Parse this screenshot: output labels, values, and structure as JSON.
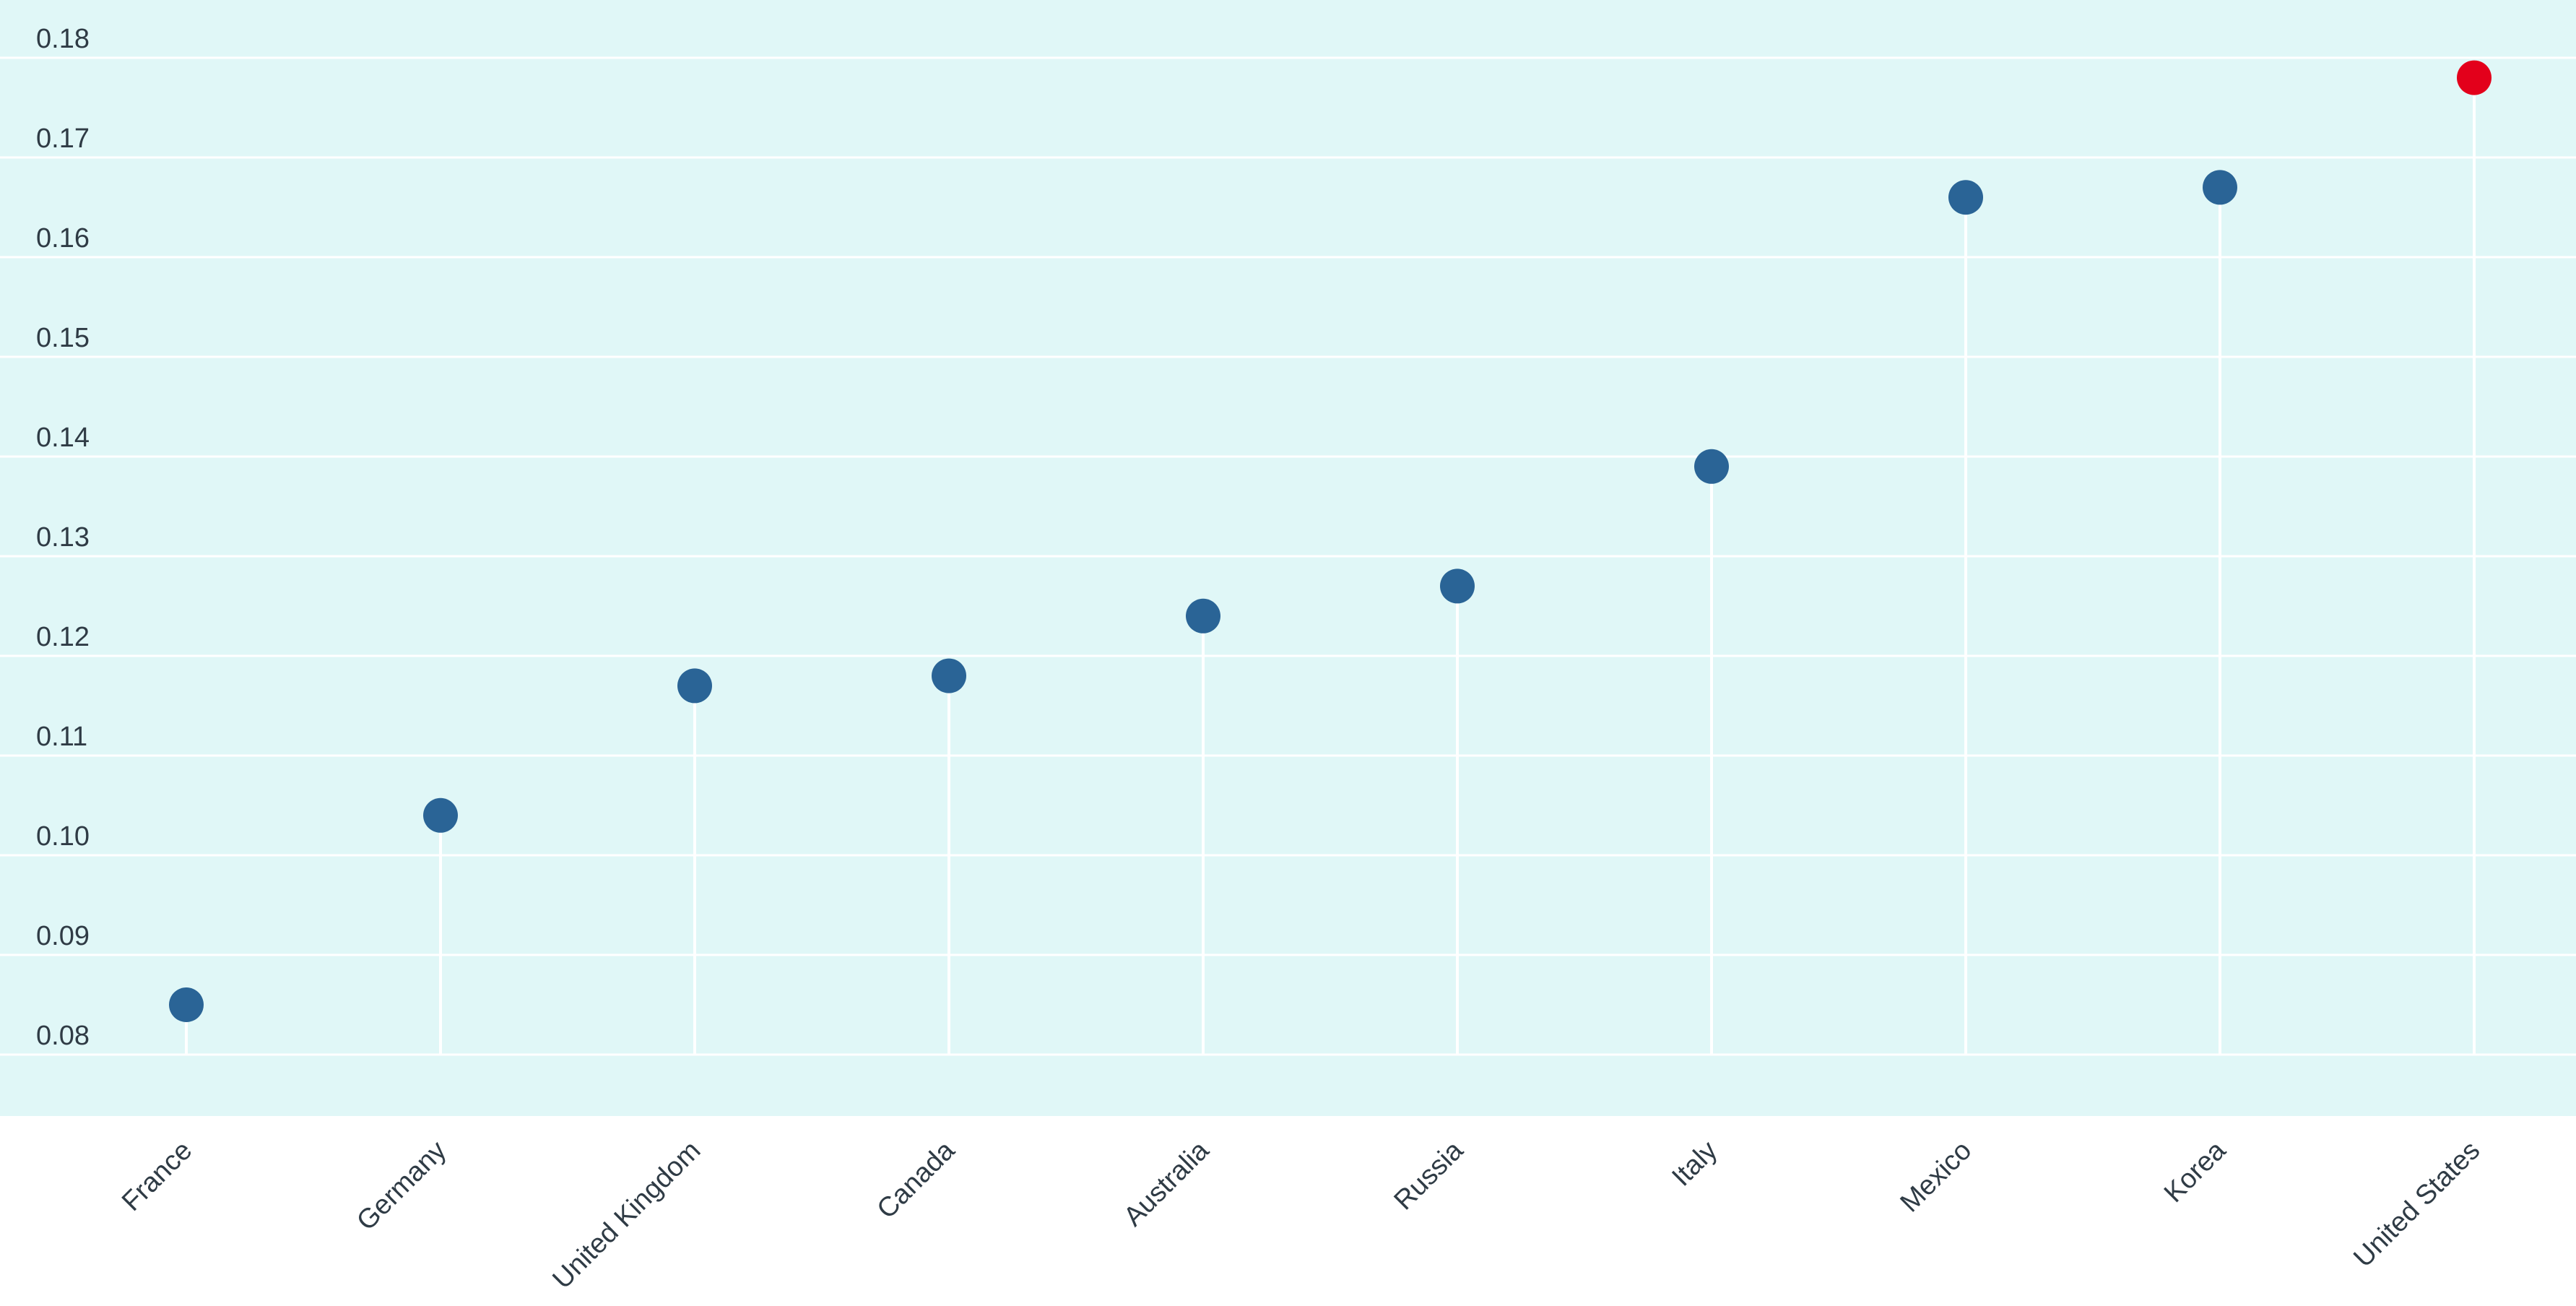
{
  "chart_data": {
    "type": "lollipop",
    "title": "",
    "xlabel": "",
    "ylabel": "",
    "categories": [
      "France",
      "Germany",
      "United Kingdom",
      "Canada",
      "Australia",
      "Russia",
      "Italy",
      "Mexico",
      "Korea",
      "United States"
    ],
    "values": [
      0.085,
      0.104,
      0.117,
      0.118,
      0.124,
      0.127,
      0.139,
      0.166,
      0.167,
      0.178
    ],
    "highlight": "United States",
    "ylim": [
      0.08,
      0.18
    ],
    "yticks": [
      "0.08",
      "0.09",
      "0.10",
      "0.11",
      "0.12",
      "0.13",
      "0.14",
      "0.15",
      "0.16",
      "0.17",
      "0.18"
    ],
    "grid": true,
    "colors": {
      "plot_background": "#e0f7f7",
      "gridline": "#ffffff",
      "stem": "#ffffff",
      "point": "#2a6496",
      "highlight_point": "#e3001b",
      "highlight_label": "#e3001b",
      "text": "#2f3b45"
    }
  }
}
